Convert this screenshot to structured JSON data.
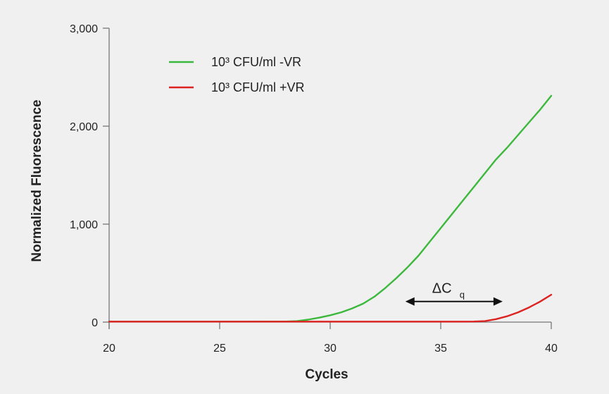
{
  "chart_data": {
    "type": "line",
    "xlabel": "Cycles",
    "ylabel": "Normalized Fluorescence",
    "xlim": [
      20,
      40
    ],
    "ylim": [
      0,
      3000
    ],
    "x_ticks": [
      20,
      25,
      30,
      35,
      40
    ],
    "x_tick_labels": [
      "20",
      "25",
      "30",
      "35",
      "40"
    ],
    "y_ticks": [
      0,
      1000,
      2000,
      3000
    ],
    "y_tick_labels": [
      "0",
      "1,000",
      "2,000",
      "3,000"
    ],
    "grid": false,
    "legend_position": "top-left",
    "series": [
      {
        "name": "10³ CFU/ml -VR",
        "color": "#3cb83c",
        "x": [
          20,
          22,
          24,
          26,
          28,
          28.5,
          29,
          29.5,
          30,
          30.5,
          31,
          31.5,
          32,
          32.5,
          33,
          33.5,
          34,
          34.5,
          35,
          35.5,
          36,
          36.5,
          37,
          37.5,
          38,
          38.5,
          39,
          39.5,
          40
        ],
        "y": [
          5,
          5,
          5,
          5,
          6,
          10,
          25,
          45,
          70,
          100,
          140,
          190,
          260,
          350,
          450,
          560,
          680,
          820,
          960,
          1100,
          1240,
          1380,
          1520,
          1660,
          1780,
          1910,
          2040,
          2170,
          2310
        ]
      },
      {
        "name": "10³ CFU/ml +VR",
        "color": "#dd2222",
        "x": [
          20,
          22,
          24,
          26,
          28,
          30,
          32,
          34,
          35,
          36,
          36.5,
          37,
          37.5,
          38,
          38.5,
          39,
          39.5,
          40
        ],
        "y": [
          5,
          5,
          5,
          5,
          5,
          5,
          5,
          5,
          5,
          5,
          6,
          10,
          30,
          60,
          100,
          150,
          210,
          280
        ]
      }
    ],
    "annotations": [
      {
        "text": "ΔC",
        "subscript": "q",
        "arrow_from_x": 33.4,
        "arrow_to_x": 37.8,
        "arrow_y": 210,
        "label_x": 35.5,
        "label_y": 400
      }
    ]
  }
}
